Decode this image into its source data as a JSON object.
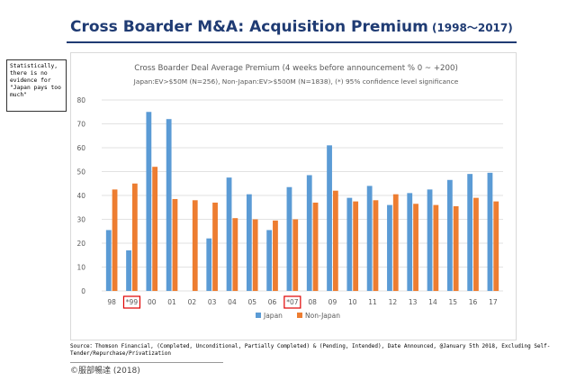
{
  "page": {
    "title_main": "Cross Boarder M&A: Acquisition Premium",
    "title_sub": " (1998～2017)",
    "note_text": "Statistically, there is no evidence for \"Japan pays too much\"",
    "source_text": "Source：Thomson Financial, (Completed, Unconditional, Partially Completed) & (Pending, Intended), Date Announced, @January 5th 2018, Excluding Self-Tender/Repurchase/Privatization",
    "copyright": "©服部暢達 (2018)"
  },
  "chart_data": {
    "type": "bar",
    "title": "Cross Boarder Deal Average Premium (4 weeks before announcement  %  0 ~ +200)",
    "subtitle": "Japan:EV>$50M (N=256), Non-Japan:EV>$500M (N=1838), (*) 95% confidence level significance",
    "categories": [
      "98",
      "*99",
      "00",
      "01",
      "02",
      "03",
      "04",
      "05",
      "06",
      "*07",
      "08",
      "09",
      "10",
      "11",
      "12",
      "13",
      "14",
      "15",
      "16",
      "17"
    ],
    "highlighted_categories": [
      "*99",
      "*07"
    ],
    "series": [
      {
        "name": "Japan",
        "color": "#5b9bd5",
        "values": [
          25.5,
          17,
          75,
          72,
          null,
          22,
          47.5,
          40.5,
          25.5,
          43.5,
          48.5,
          61,
          39,
          44,
          36,
          41,
          42.5,
          46.5,
          49,
          49.5
        ]
      },
      {
        "name": "Non-Japan",
        "color": "#ed7d31",
        "values": [
          42.5,
          45,
          52,
          38.5,
          38,
          37,
          30.5,
          30,
          29.5,
          30,
          37,
          42,
          37.5,
          38,
          40.5,
          36.5,
          36,
          35.5,
          39,
          37.5
        ]
      }
    ],
    "yticks": [
      0,
      10,
      20,
      30,
      40,
      50,
      60,
      70,
      80
    ],
    "ylim": [
      0,
      80
    ],
    "grid": true,
    "legend_position": "bottom",
    "xlabel": "",
    "ylabel": ""
  }
}
